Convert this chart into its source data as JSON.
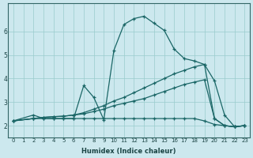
{
  "title": "",
  "xlabel": "Humidex (Indice chaleur)",
  "background_color": "#cce8ee",
  "grid_color": "#99cccc",
  "line_color": "#1a6666",
  "xlim": [
    -0.5,
    23.5
  ],
  "ylim": [
    1.5,
    7.2
  ],
  "yticks": [
    2,
    3,
    4,
    5,
    6
  ],
  "xticks": [
    0,
    1,
    2,
    3,
    4,
    5,
    6,
    7,
    8,
    9,
    10,
    11,
    12,
    13,
    14,
    15,
    16,
    17,
    18,
    19,
    20,
    21,
    22,
    23
  ],
  "line1_x": [
    0,
    2,
    3,
    4,
    5,
    6,
    7,
    8,
    9,
    10,
    11,
    12,
    13,
    14,
    15,
    16,
    17,
    18,
    19,
    20,
    21,
    22,
    23
  ],
  "line1_y": [
    2.2,
    2.45,
    2.3,
    2.3,
    2.3,
    2.3,
    3.7,
    3.2,
    2.25,
    5.2,
    6.3,
    6.55,
    6.65,
    6.35,
    6.05,
    5.25,
    4.85,
    4.75,
    4.6,
    3.9,
    2.45,
    1.95,
    2.0
  ],
  "line2_x": [
    0,
    2,
    3,
    4,
    5,
    6,
    7,
    8,
    9,
    10,
    11,
    12,
    13,
    14,
    15,
    16,
    17,
    18,
    19,
    20,
    21,
    22,
    23
  ],
  "line2_y": [
    2.2,
    2.3,
    2.3,
    2.3,
    2.3,
    2.3,
    2.3,
    2.3,
    2.3,
    2.3,
    2.3,
    2.3,
    2.3,
    2.3,
    2.3,
    2.3,
    2.3,
    2.3,
    2.2,
    2.05,
    2.0,
    1.95,
    2.0
  ],
  "line3_x": [
    0,
    2,
    3,
    4,
    5,
    6,
    7,
    8,
    9,
    10,
    11,
    12,
    13,
    14,
    15,
    16,
    17,
    18,
    19,
    20,
    21,
    22,
    23
  ],
  "line3_y": [
    2.2,
    2.3,
    2.35,
    2.38,
    2.4,
    2.45,
    2.5,
    2.6,
    2.7,
    2.85,
    2.95,
    3.05,
    3.15,
    3.3,
    3.45,
    3.6,
    3.75,
    3.85,
    3.95,
    2.3,
    2.0,
    1.95,
    2.0
  ],
  "line4_x": [
    0,
    2,
    3,
    4,
    5,
    6,
    7,
    8,
    9,
    10,
    11,
    12,
    13,
    14,
    15,
    16,
    17,
    18,
    19,
    20,
    21,
    22,
    23
  ],
  "line4_y": [
    2.2,
    2.3,
    2.35,
    2.38,
    2.4,
    2.45,
    2.55,
    2.7,
    2.85,
    3.05,
    3.2,
    3.4,
    3.6,
    3.8,
    4.0,
    4.2,
    4.35,
    4.5,
    4.6,
    2.3,
    2.0,
    1.95,
    2.0
  ]
}
